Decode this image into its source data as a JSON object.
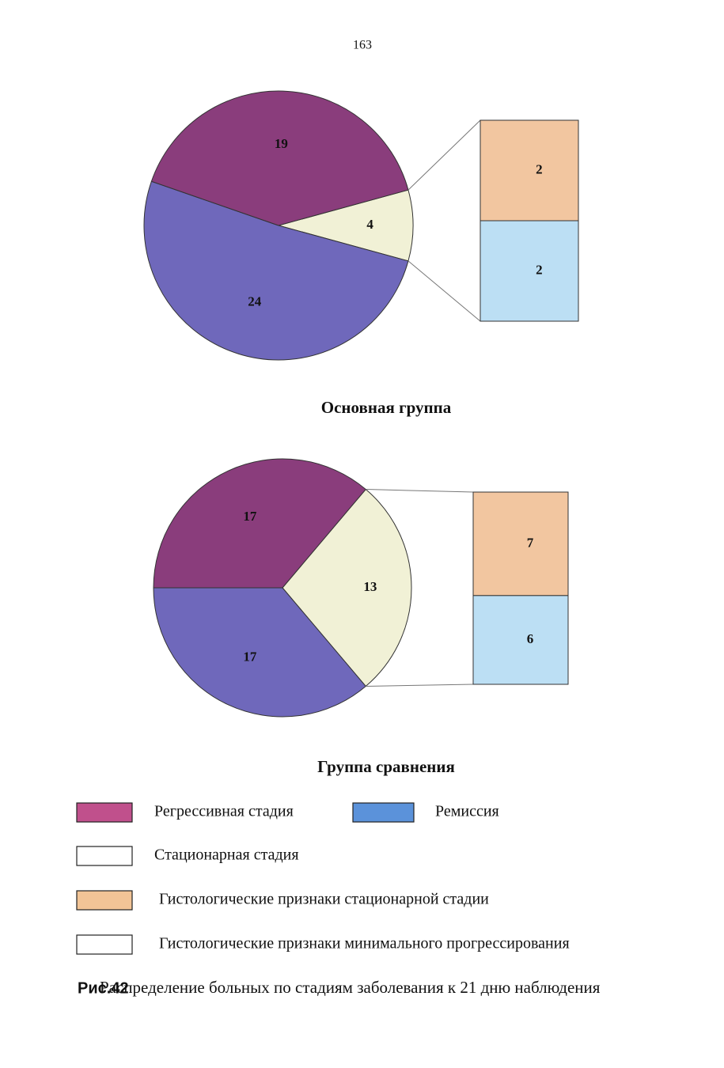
{
  "page_number": "163",
  "chart_data": [
    {
      "type": "pie-of-bar",
      "title": "Основная группа",
      "values": [
        19,
        4,
        24
      ],
      "colors": [
        "#8a3d7c",
        "#f1f1d6",
        "#6f68bb"
      ],
      "breakout_index": 1,
      "breakout_values": [
        2,
        2
      ],
      "breakout_colors": [
        "#f2c6a0",
        "#bcdff4"
      ]
    },
    {
      "type": "pie-of-bar",
      "title": "Группа сравнения",
      "values": [
        17,
        13,
        17
      ],
      "colors": [
        "#8a3d7c",
        "#f1f1d6",
        "#6f68bb"
      ],
      "breakout_index": 1,
      "breakout_values": [
        7,
        6
      ],
      "breakout_colors": [
        "#f2c6a0",
        "#bcdff4"
      ]
    }
  ],
  "legend": [
    {
      "label": "Регрессивная стадия",
      "color": "#c0508c"
    },
    {
      "label": "Ремиссия",
      "color": "#5b92da"
    },
    {
      "label": "Стационарная стадия",
      "color": "#ffffff"
    },
    {
      "label": "Гистологические признаки стационарной стадии",
      "color": "#f2c496"
    },
    {
      "label": "Гистологические признаки минимального прогрессирования",
      "color": "#ffffff"
    }
  ],
  "caption": {
    "label": "Рис.42",
    "text": "Распределение больных по стадиям заболевания к 21 дню наблюдения"
  }
}
